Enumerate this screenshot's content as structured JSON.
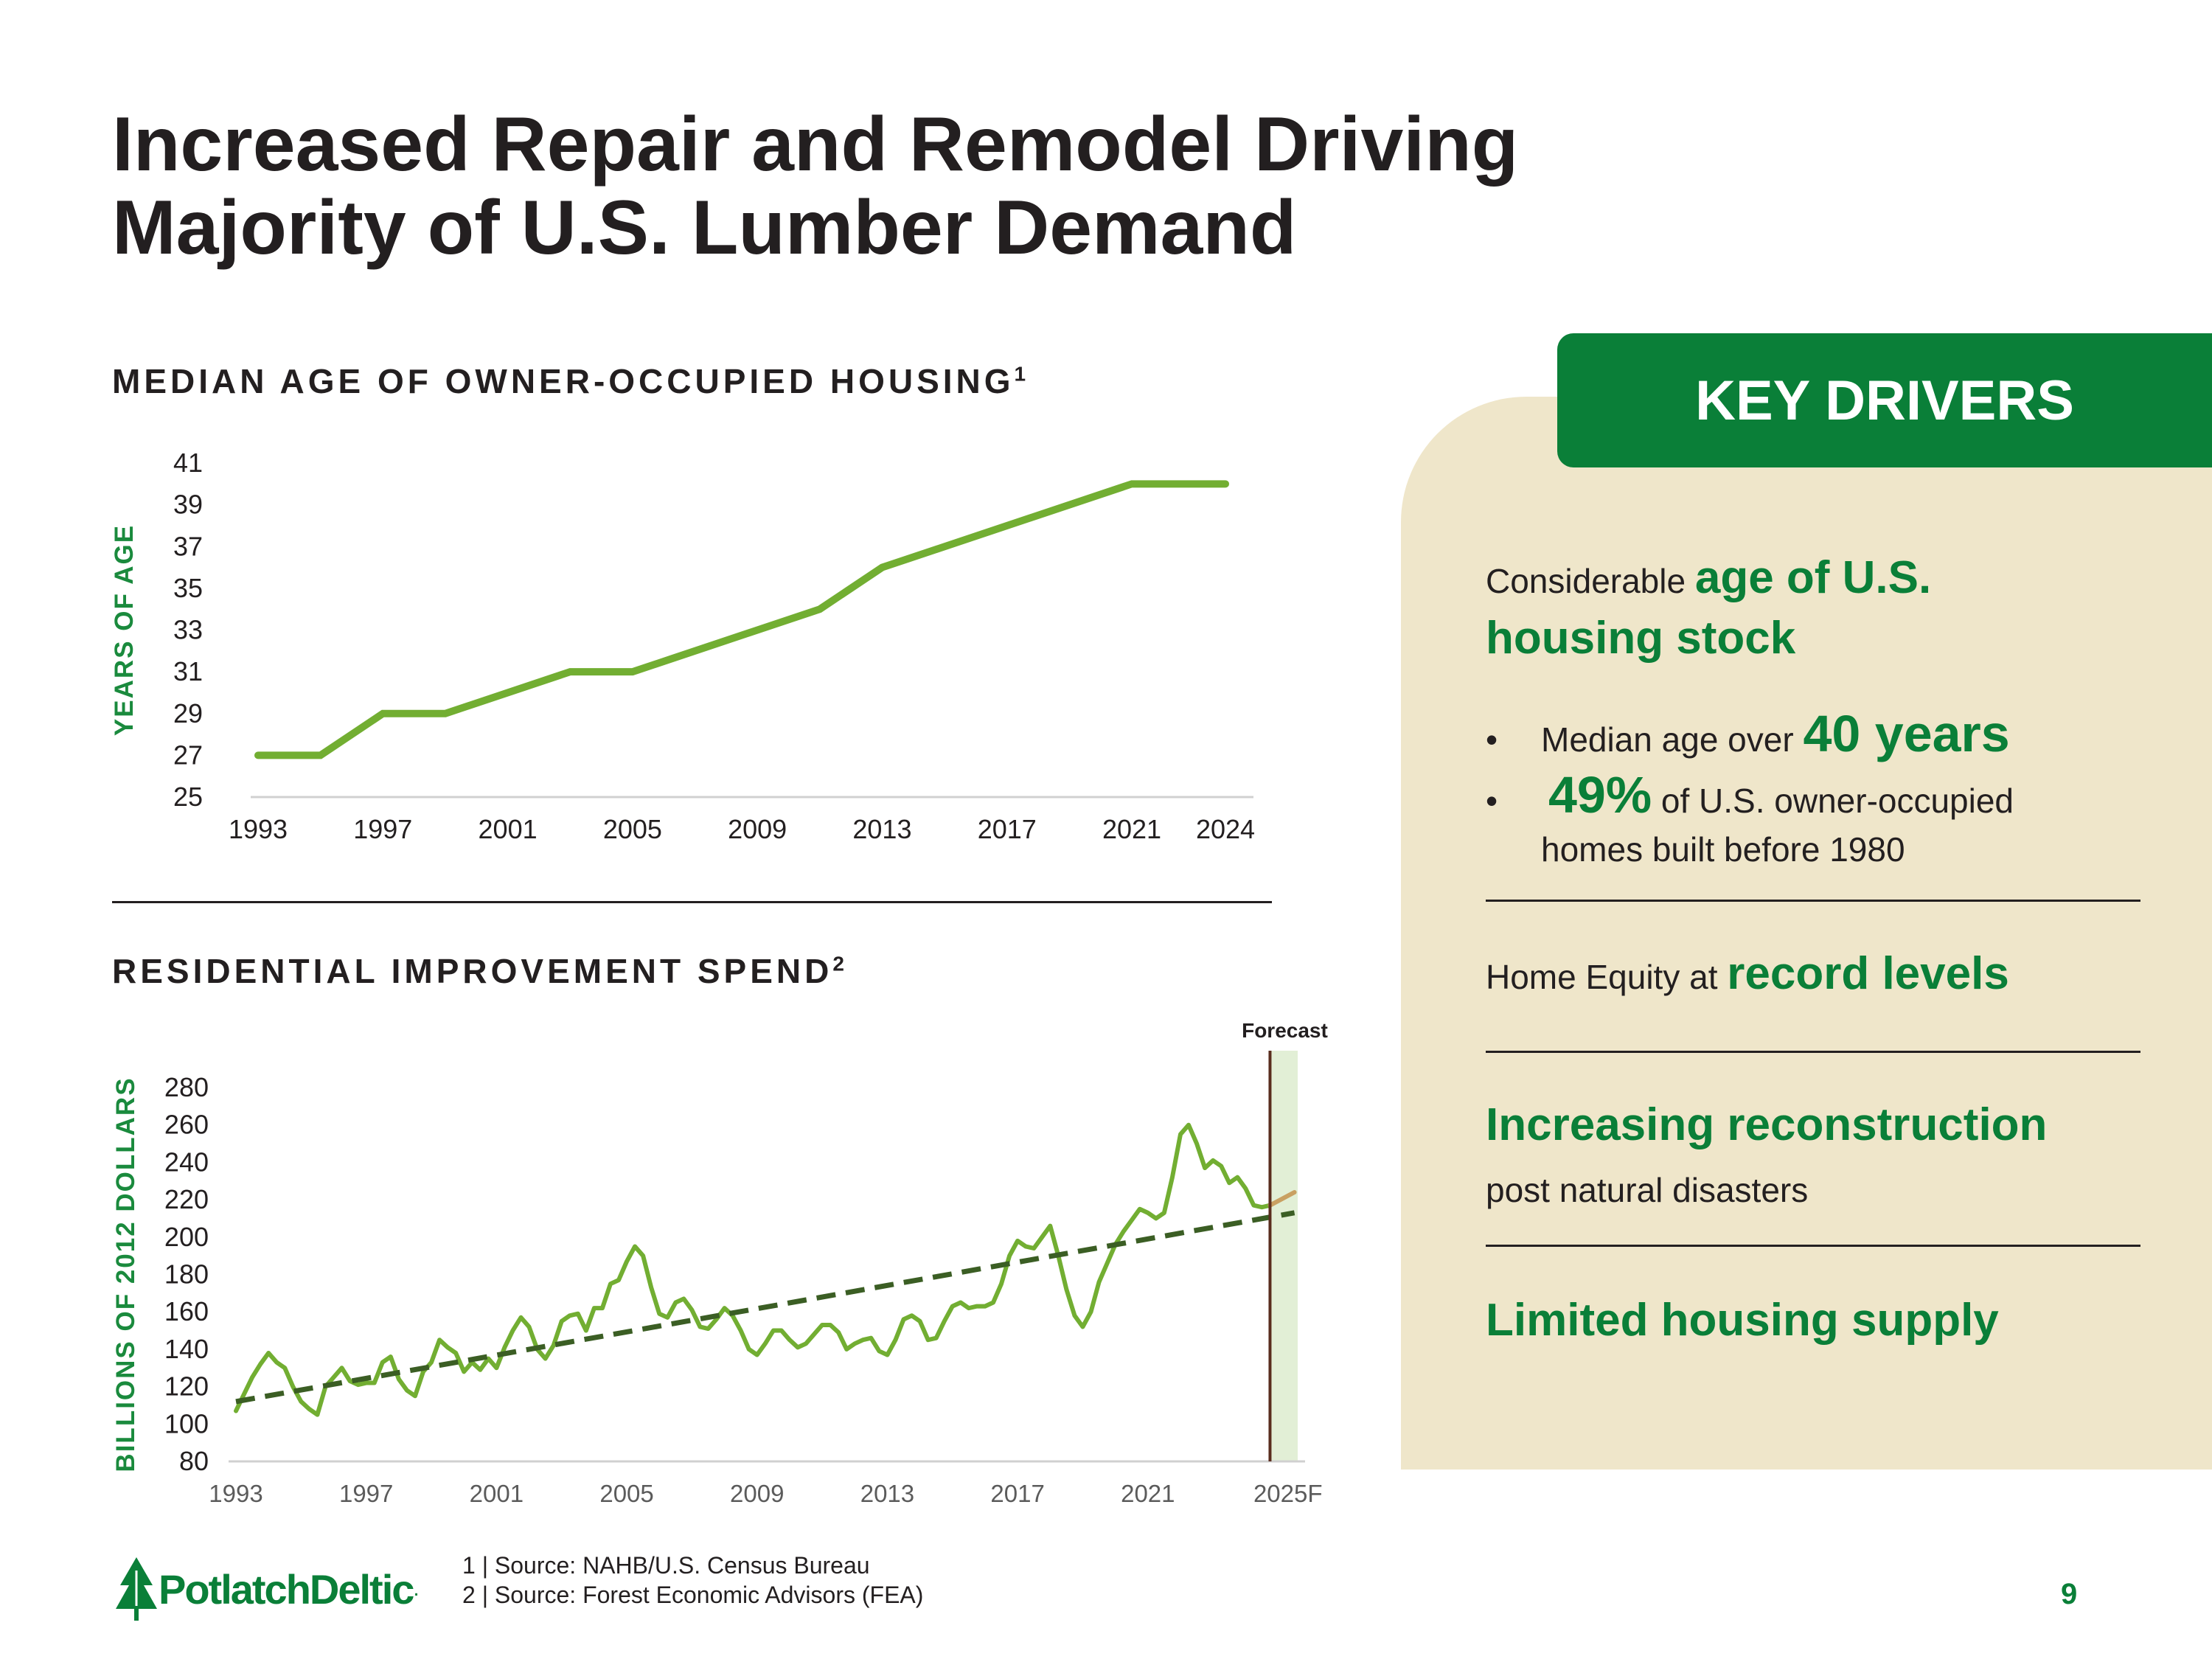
{
  "title": {
    "line1": "Increased Repair and Remodel Driving",
    "line2": "Majority of U.S. Lumber Demand"
  },
  "chart1": {
    "heading": "MEDIAN AGE OF OWNER-OCCUPIED HOUSING",
    "heading_sup": "1"
  },
  "chart2": {
    "heading": "RESIDENTIAL IMPROVEMENT SPEND",
    "heading_sup": "2",
    "forecast_label": "Forecast"
  },
  "colors": {
    "line_green": "#72ae32",
    "trend_dark": "#3b5e24",
    "forecast_tan": "#c9a062",
    "forecast_band": "#e2efd6",
    "forecast_line": "#5a2d1e",
    "brand_green": "#0a7f38",
    "panel_bg": "#efe6ca"
  },
  "chart_data": [
    {
      "type": "line",
      "title": "MEDIAN AGE OF OWNER-OCCUPIED HOUSING",
      "xlabel": "",
      "ylabel": "YEARS OF AGE",
      "ylim": [
        25,
        41
      ],
      "yticks": [
        25,
        27,
        29,
        31,
        33,
        35,
        37,
        39,
        41
      ],
      "xlim": [
        1993,
        2024
      ],
      "xticks": [
        "1993",
        "1997",
        "2001",
        "2005",
        "2009",
        "2013",
        "2017",
        "2021",
        "2024"
      ],
      "series": [
        {
          "name": "Median age",
          "x": [
            1993,
            1995,
            1997,
            1999,
            2003,
            2005,
            2011,
            2013,
            2021,
            2024
          ],
          "values": [
            27,
            27,
            29,
            29,
            31,
            31,
            34,
            36,
            40,
            40
          ]
        }
      ]
    },
    {
      "type": "line",
      "title": "RESIDENTIAL IMPROVEMENT SPEND",
      "xlabel": "",
      "ylabel": "BILLIONS OF 2012 DOLLARS",
      "ylim": [
        80,
        280
      ],
      "yticks": [
        80,
        100,
        120,
        140,
        160,
        180,
        200,
        220,
        240,
        260,
        280
      ],
      "xlim": [
        1993,
        2025.6
      ],
      "xticks": [
        "1993",
        "1997",
        "2001",
        "2005",
        "2009",
        "2013",
        "2017",
        "2021",
        "2025F"
      ],
      "forecast_start": 2024.75,
      "annotations": [
        "Forecast"
      ],
      "series": [
        {
          "name": "Improvement spend",
          "x": [
            1993.0,
            1993.25,
            1993.5,
            1993.75,
            1994.0,
            1994.25,
            1994.5,
            1994.75,
            1995.0,
            1995.25,
            1995.5,
            1995.75,
            1996.0,
            1996.25,
            1996.5,
            1996.75,
            1997.0,
            1997.25,
            1997.5,
            1997.75,
            1998.0,
            1998.25,
            1998.5,
            1998.75,
            1999.0,
            1999.25,
            1999.5,
            1999.75,
            2000.0,
            2000.25,
            2000.5,
            2000.75,
            2001.0,
            2001.25,
            2001.5,
            2001.75,
            2002.0,
            2002.25,
            2002.5,
            2002.75,
            2003.0,
            2003.25,
            2003.5,
            2003.75,
            2004.0,
            2004.25,
            2004.5,
            2004.75,
            2005.0,
            2005.25,
            2005.5,
            2005.75,
            2006.0,
            2006.25,
            2006.5,
            2006.75,
            2007.0,
            2007.25,
            2007.5,
            2007.75,
            2008.0,
            2008.25,
            2008.5,
            2008.75,
            2009.0,
            2009.25,
            2009.5,
            2009.75,
            2010.0,
            2010.25,
            2010.5,
            2010.75,
            2011.0,
            2011.25,
            2011.5,
            2011.75,
            2012.0,
            2012.25,
            2012.5,
            2012.75,
            2013.0,
            2013.25,
            2013.5,
            2013.75,
            2014.0,
            2014.25,
            2014.5,
            2014.75,
            2015.0,
            2015.25,
            2015.5,
            2015.75,
            2016.0,
            2016.25,
            2016.5,
            2016.75,
            2017.0,
            2017.25,
            2017.5,
            2017.75,
            2018.0,
            2018.25,
            2018.5,
            2018.75,
            2019.0,
            2019.25,
            2019.5,
            2019.75,
            2020.0,
            2020.25,
            2020.5,
            2020.75,
            2021.0,
            2021.25,
            2021.5,
            2021.75,
            2022.0,
            2022.25,
            2022.5,
            2022.75,
            2023.0,
            2023.25,
            2023.5,
            2023.75,
            2024.0,
            2024.25,
            2024.5,
            2024.75
          ],
          "values": [
            107,
            116,
            125,
            132,
            138,
            133,
            130,
            120,
            112,
            108,
            105,
            120,
            125,
            130,
            123,
            121,
            122,
            122,
            133,
            136,
            124,
            118,
            115,
            128,
            133,
            145,
            141,
            138,
            128,
            133,
            129,
            135,
            130,
            141,
            150,
            157,
            152,
            140,
            135,
            142,
            155,
            158,
            159,
            150,
            162,
            162,
            175,
            177,
            187,
            195,
            190,
            173,
            159,
            157,
            165,
            167,
            161,
            152,
            151,
            156,
            162,
            158,
            150,
            140,
            137,
            143,
            150,
            150,
            145,
            141,
            143,
            148,
            153,
            153,
            149,
            140,
            143,
            145,
            146,
            139,
            137,
            145,
            156,
            158,
            155,
            145,
            146,
            155,
            163,
            165,
            162,
            163,
            163,
            165,
            175,
            190,
            198,
            195,
            194,
            200,
            206,
            190,
            172,
            158,
            152,
            160,
            176,
            186,
            196,
            203,
            209,
            215,
            213,
            210,
            213,
            232,
            255,
            260,
            250,
            237,
            241,
            238,
            229,
            232,
            226,
            217,
            216,
            217
          ]
        },
        {
          "name": "Forecast",
          "x": [
            2024.75,
            2025.5
          ],
          "values": [
            217,
            224
          ]
        },
        {
          "name": "Trend",
          "x": [
            1993,
            2025.5
          ],
          "values": [
            112,
            213
          ]
        }
      ]
    }
  ],
  "key_drivers": {
    "header": "KEY DRIVERS",
    "d1_pre": "Considerable ",
    "d1_hl1": "age of U.S.",
    "d1_hl2": "housing stock",
    "bullet_char": "•",
    "b1_pre": "Median age over ",
    "b1_hl": "40 years",
    "b2_hl": "49%",
    "b2_post": " of U.S. owner-occupied",
    "b2_line2": "homes built before 1980",
    "d2_pre": "Home Equity at ",
    "d2_hl": "record levels",
    "d3_hl": "Increasing reconstruction",
    "d3_post": "post natural disasters",
    "d4_hl": "Limited housing supply"
  },
  "footnotes": {
    "note1": "1 | Source: NAHB/U.S. Census Bureau",
    "note2": "2 | Source: Forest Economic Advisors (FEA)"
  },
  "logo": {
    "text": "PotlatchDeltic",
    "mark": "."
  },
  "page_number": "9"
}
